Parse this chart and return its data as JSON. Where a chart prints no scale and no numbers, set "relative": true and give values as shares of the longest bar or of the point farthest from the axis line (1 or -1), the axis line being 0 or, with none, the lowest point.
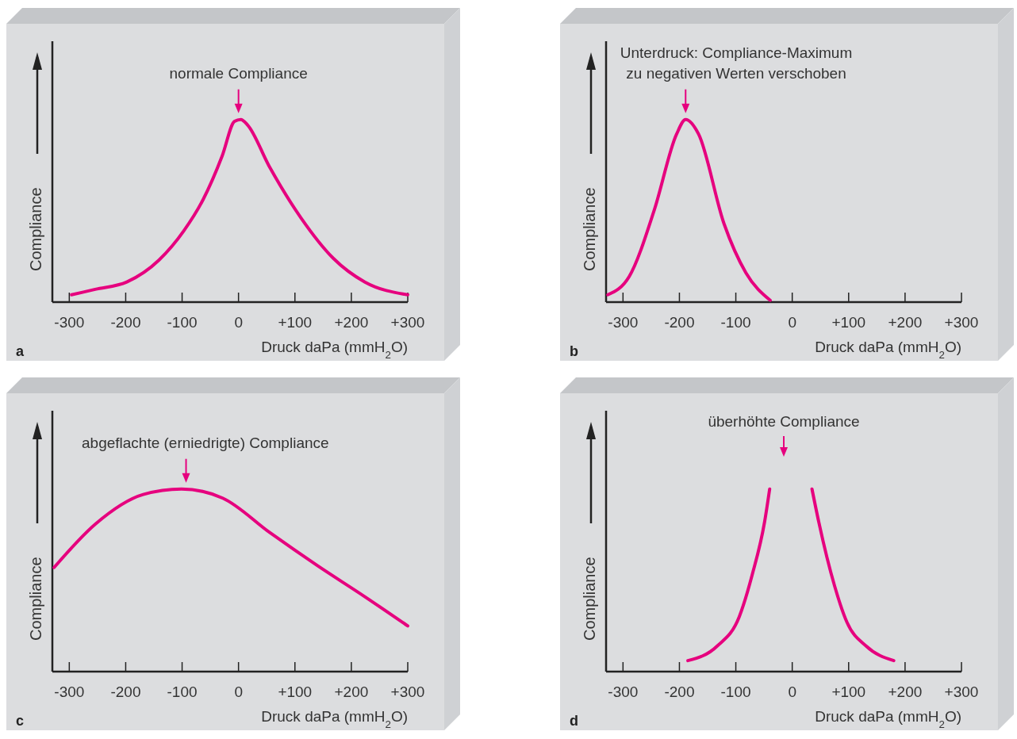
{
  "chart_data": [
    {
      "type": "line",
      "title": "a",
      "xlabel": "Druck daPa (mmH$_{2}$O)",
      "ylabel": "Compliance",
      "relative": true,
      "tick_labels": "x",
      "xlim": [
        -330,
        300
      ],
      "xticks": [
        -300,
        -200,
        -100,
        0,
        {
          "value": 100,
          "label": "+100"
        },
        {
          "value": 200,
          "label": "+200"
        },
        {
          "value": 300,
          "label": "+300"
        }
      ],
      "annotations": [
        {
          "text": "normale Compliance",
          "x": 0,
          "y": 1
        }
      ],
      "series": [
        {
          "color": "#e6007e",
          "x": [
            -296,
            -254,
            -198,
            -141,
            -97,
            -63,
            -29,
            -7,
            4,
            16,
            55,
            111,
            168,
            224,
            300
          ],
          "values": [
            0.04,
            0.07,
            0.11,
            0.23,
            0.39,
            0.56,
            0.8,
            0.99,
            1,
            0.97,
            0.74,
            0.46,
            0.24,
            0.11,
            0.04
          ]
        }
      ]
    },
    {
      "type": "line",
      "title": "b",
      "xlabel": "Druck daPa (mmH$_{2}$O)",
      "ylabel": "Compliance",
      "relative": true,
      "tick_labels": "x",
      "xlim": [
        -330,
        300
      ],
      "xticks": [
        -300,
        -200,
        -100,
        0,
        {
          "value": 100,
          "label": "+100"
        },
        {
          "value": 200,
          "label": "+200"
        },
        {
          "value": 300,
          "label": "+300"
        }
      ],
      "annotations": [
        {
          "text": "Unterdruck: Compliance-Maximum\nzu negativen Werten verschoben",
          "x": -189,
          "y": 1
        }
      ],
      "series": [
        {
          "color": "#e6007e",
          "x": [
            -327,
            -289,
            -244,
            -205,
            -189,
            -166,
            -121,
            -82,
            -39
          ],
          "values": [
            0.04,
            0.14,
            0.51,
            0.92,
            1,
            0.92,
            0.43,
            0.16,
            0.01
          ]
        }
      ]
    },
    {
      "type": "line",
      "title": "c",
      "xlabel": "Druck daPa (mmH$_{2}$O)",
      "ylabel": "Compliance",
      "relative": true,
      "tick_labels": "x",
      "xlim": [
        -330,
        300
      ],
      "xticks": [
        -300,
        -200,
        -100,
        0,
        {
          "value": 100,
          "label": "+100"
        },
        {
          "value": 200,
          "label": "+200"
        },
        {
          "value": 300,
          "label": "+300"
        }
      ],
      "annotations": [
        {
          "text": "abgeflachte (erniedrigte) Compliance",
          "x": -93,
          "y": 1
        }
      ],
      "series": [
        {
          "color": "#e6007e",
          "x": [
            -327,
            -253,
            -169,
            -101,
            -28,
            56,
            140,
            224,
            300
          ],
          "values": [
            0.57,
            0.81,
            0.97,
            1,
            0.95,
            0.76,
            0.58,
            0.41,
            0.25
          ]
        }
      ]
    },
    {
      "type": "line",
      "title": "d",
      "xlabel": "Druck daPa (mmH$_{2}$O)",
      "ylabel": "Compliance",
      "relative": true,
      "tick_labels": "x",
      "xlim": [
        -330,
        300
      ],
      "xticks": [
        -300,
        -200,
        -100,
        0,
        {
          "value": 100,
          "label": "+100"
        },
        {
          "value": 200,
          "label": "+200"
        },
        {
          "value": 300,
          "label": "+300"
        }
      ],
      "annotations": [
        "überhöhte Compliance"
      ],
      "series": [
        {
          "color": "#e6007e",
          "x": [
            -185,
            -133,
            -94,
            -71,
            -49,
            -40,
            0,
            35,
            47,
            75,
            97,
            131,
            180
          ],
          "values": [
            0.06,
            0.14,
            0.3,
            0.53,
            0.82,
            1,
            null,
            1,
            0.82,
            0.47,
            0.27,
            0.14,
            0.06
          ]
        }
      ]
    }
  ]
}
